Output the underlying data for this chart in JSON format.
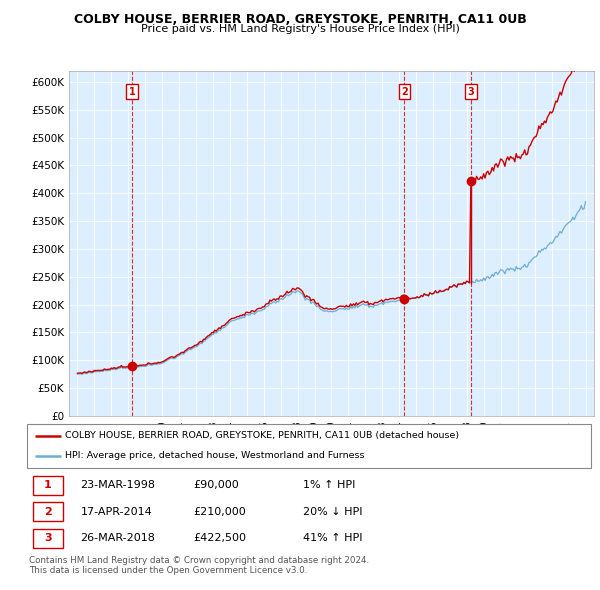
{
  "title": "COLBY HOUSE, BERRIER ROAD, GREYSTOKE, PENRITH, CA11 0UB",
  "subtitle": "Price paid vs. HM Land Registry's House Price Index (HPI)",
  "ylim": [
    0,
    620000
  ],
  "yticks": [
    0,
    50000,
    100000,
    150000,
    200000,
    250000,
    300000,
    350000,
    400000,
    450000,
    500000,
    550000,
    600000
  ],
  "ytick_labels": [
    "£0",
    "£50K",
    "£100K",
    "£150K",
    "£200K",
    "£250K",
    "£300K",
    "£350K",
    "£400K",
    "£450K",
    "£500K",
    "£550K",
    "£600K"
  ],
  "sale_dates": [
    1998.22,
    2014.3,
    2018.23
  ],
  "sale_prices": [
    90000,
    210000,
    422500
  ],
  "sale_labels": [
    "1",
    "2",
    "3"
  ],
  "red_color": "#cc0000",
  "blue_color": "#6baed6",
  "bg_color": "#ddeeff",
  "legend_line1": "COLBY HOUSE, BERRIER ROAD, GREYSTOKE, PENRITH, CA11 0UB (detached house)",
  "legend_line2": "HPI: Average price, detached house, Westmorland and Furness",
  "table_data": [
    [
      "1",
      "23-MAR-1998",
      "£90,000",
      "1% ↑ HPI"
    ],
    [
      "2",
      "17-APR-2014",
      "£210,000",
      "20% ↓ HPI"
    ],
    [
      "3",
      "26-MAR-2018",
      "£422,500",
      "41% ↑ HPI"
    ]
  ],
  "footer_line1": "Contains HM Land Registry data © Crown copyright and database right 2024.",
  "footer_line2": "This data is licensed under the Open Government Licence v3.0."
}
